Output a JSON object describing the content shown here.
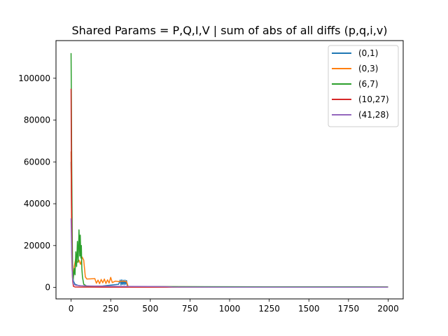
{
  "chart_data": {
    "type": "line",
    "title": "Shared Params = P,Q,I,V | sum of abs of all diffs (p,q,i,v)",
    "xlabel": "",
    "ylabel": "",
    "xlim": [
      -95,
      2095
    ],
    "ylim": [
      -5500,
      118000
    ],
    "x_ticks": [
      0,
      250,
      500,
      750,
      1000,
      1250,
      1500,
      1750,
      2000
    ],
    "y_ticks": [
      0,
      20000,
      40000,
      60000,
      80000,
      100000
    ],
    "legend_position": "top-right",
    "series": [
      {
        "name": "(0,1)",
        "color": "#1f77b4",
        "points": [
          [
            0,
            60000
          ],
          [
            3,
            38000
          ],
          [
            6,
            15000
          ],
          [
            10,
            6000
          ],
          [
            15,
            3000
          ],
          [
            25,
            1500
          ],
          [
            50,
            800
          ],
          [
            100,
            600
          ],
          [
            200,
            700
          ],
          [
            300,
            1500
          ],
          [
            310,
            3500
          ],
          [
            315,
            1200
          ],
          [
            320,
            3600
          ],
          [
            325,
            1400
          ],
          [
            330,
            3400
          ],
          [
            335,
            1300
          ],
          [
            340,
            3500
          ],
          [
            345,
            1500
          ],
          [
            350,
            3300
          ],
          [
            355,
            800
          ],
          [
            360,
            300
          ],
          [
            400,
            250
          ],
          [
            600,
            200
          ],
          [
            1000,
            150
          ],
          [
            2000,
            100
          ]
        ]
      },
      {
        "name": "(0,3)",
        "color": "#ff7f0e",
        "points": [
          [
            0,
            65000
          ],
          [
            5,
            12000
          ],
          [
            10,
            4000
          ],
          [
            20,
            10000
          ],
          [
            30,
            14000
          ],
          [
            40,
            12000
          ],
          [
            50,
            13000
          ],
          [
            60,
            11000
          ],
          [
            70,
            14500
          ],
          [
            80,
            13000
          ],
          [
            90,
            5000
          ],
          [
            100,
            4000
          ],
          [
            150,
            4200
          ],
          [
            160,
            2000
          ],
          [
            170,
            3500
          ],
          [
            180,
            1800
          ],
          [
            190,
            3800
          ],
          [
            200,
            2200
          ],
          [
            210,
            4000
          ],
          [
            220,
            1900
          ],
          [
            230,
            3600
          ],
          [
            240,
            2100
          ],
          [
            250,
            4800
          ],
          [
            260,
            2300
          ],
          [
            280,
            3000
          ],
          [
            300,
            2800
          ],
          [
            330,
            3000
          ],
          [
            350,
            2800
          ],
          [
            360,
            500
          ],
          [
            400,
            400
          ],
          [
            700,
            300
          ],
          [
            1000,
            250
          ],
          [
            2000,
            200
          ]
        ]
      },
      {
        "name": "(6,7)",
        "color": "#2ca02c",
        "points": [
          [
            0,
            112000
          ],
          [
            2,
            90000
          ],
          [
            4,
            60000
          ],
          [
            6,
            40000
          ],
          [
            8,
            20000
          ],
          [
            10,
            8000
          ],
          [
            14,
            4000
          ],
          [
            20,
            9000
          ],
          [
            25,
            6000
          ],
          [
            30,
            17000
          ],
          [
            35,
            10000
          ],
          [
            40,
            22000
          ],
          [
            45,
            12000
          ],
          [
            50,
            27500
          ],
          [
            55,
            15000
          ],
          [
            58,
            25000
          ],
          [
            62,
            14000
          ],
          [
            65,
            20000
          ],
          [
            68,
            9000
          ],
          [
            72,
            5000
          ],
          [
            80,
            1500
          ],
          [
            100,
            600
          ],
          [
            200,
            500
          ],
          [
            500,
            400
          ],
          [
            1000,
            300
          ],
          [
            2000,
            250
          ]
        ]
      },
      {
        "name": "(10,27)",
        "color": "#d62728",
        "points": [
          [
            0,
            95000
          ],
          [
            2,
            60000
          ],
          [
            4,
            30000
          ],
          [
            7,
            10000
          ],
          [
            10,
            3000
          ],
          [
            15,
            500
          ],
          [
            25,
            200
          ],
          [
            60,
            150
          ],
          [
            200,
            120
          ],
          [
            600,
            110
          ],
          [
            1000,
            100
          ],
          [
            2000,
            100
          ]
        ]
      },
      {
        "name": "(41,28)",
        "color": "#9467bd",
        "points": [
          [
            0,
            33000
          ],
          [
            2,
            25000
          ],
          [
            4,
            16000
          ],
          [
            7,
            8000
          ],
          [
            10,
            4000
          ],
          [
            15,
            1500
          ],
          [
            30,
            1000
          ],
          [
            60,
            800
          ],
          [
            150,
            600
          ],
          [
            300,
            500
          ],
          [
            500,
            450
          ],
          [
            600,
            350
          ],
          [
            640,
            200
          ],
          [
            700,
            150
          ],
          [
            1000,
            120
          ],
          [
            2000,
            100
          ]
        ]
      }
    ]
  }
}
